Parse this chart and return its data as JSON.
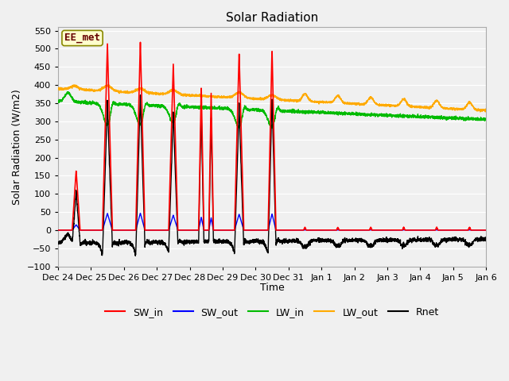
{
  "title": "Solar Radiation",
  "ylabel": "Solar Radiation (W/m2)",
  "xlabel": "Time",
  "ylim": [
    -100,
    560
  ],
  "yticks": [
    -100,
    -50,
    0,
    50,
    100,
    150,
    200,
    250,
    300,
    350,
    400,
    450,
    500,
    550
  ],
  "xtick_labels": [
    "Dec 24",
    "Dec 25",
    "Dec 26",
    "Dec 27",
    "Dec 28",
    "Dec 29",
    "Dec 30",
    "Dec 31",
    "Jan 1",
    "Jan 2",
    "Jan 3",
    "Jan 4",
    "Jan 5",
    "Jan 6"
  ],
  "legend_labels": [
    "SW_in",
    "SW_out",
    "LW_in",
    "LW_out",
    "Rnet"
  ],
  "legend_colors": [
    "#ff0000",
    "#0000ff",
    "#00bb00",
    "#ffaa00",
    "#000000"
  ],
  "site_label": "EE_met",
  "bg_color": "#f0f0f0",
  "plot_bg_color": "#f0f0f0",
  "grid_color": "#ffffff",
  "colors": {
    "SW_in": "#ff0000",
    "SW_out": "#0000ff",
    "LW_in": "#00bb00",
    "LW_out": "#ffaa00",
    "Rnet": "#000000"
  }
}
